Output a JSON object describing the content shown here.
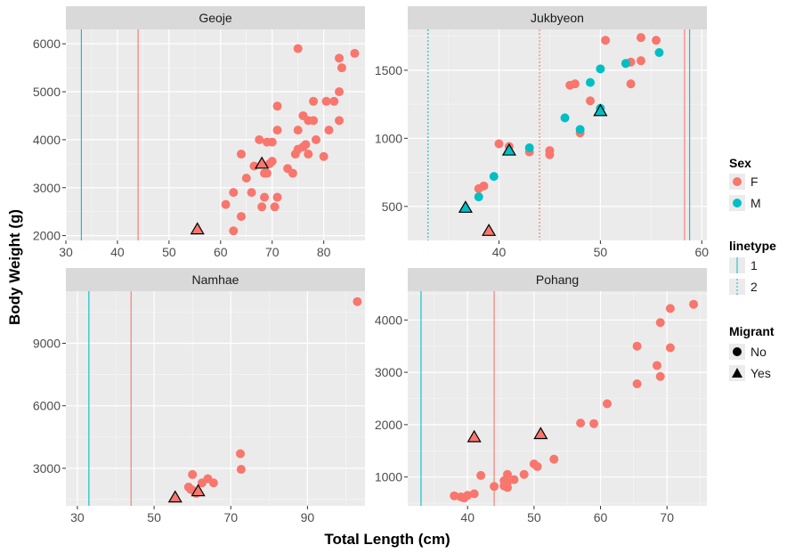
{
  "chart_data": {
    "type": "scatter",
    "xlabel": "Total Length (cm)",
    "ylabel": "Body Weight (g)",
    "colors": {
      "F": "#F8766D",
      "M": "#00BFC4"
    },
    "legend": {
      "placement": "right",
      "sex": {
        "title": "Sex",
        "items": [
          "F",
          "M"
        ]
      },
      "linetype": {
        "title": "linetype",
        "items": [
          "1",
          "2"
        ]
      },
      "migrant": {
        "title": "Migrant",
        "items": [
          "No",
          "Yes"
        ]
      }
    },
    "panels": [
      {
        "name": "Geoje",
        "xlim": [
          30,
          88
        ],
        "ylim": [
          1900,
          6300
        ],
        "xticks": [
          30,
          40,
          50,
          60,
          70,
          80
        ],
        "yticks": [
          2000,
          3000,
          4000,
          5000,
          6000
        ],
        "vlines": [
          {
            "x": 33,
            "sex": "M",
            "linetype": "1"
          },
          {
            "x": 44,
            "sex": "F",
            "linetype": "1"
          }
        ],
        "points": [
          [
            75,
            5900,
            "F",
            "No"
          ],
          [
            83,
            5700,
            "F",
            "No"
          ],
          [
            86,
            5800,
            "F",
            "No"
          ],
          [
            83.5,
            5500,
            "F",
            "No"
          ],
          [
            83,
            5000,
            "F",
            "No"
          ],
          [
            82,
            4800,
            "F",
            "No"
          ],
          [
            80.5,
            4800,
            "F",
            "No"
          ],
          [
            78,
            4800,
            "F",
            "No"
          ],
          [
            76,
            4500,
            "F",
            "No"
          ],
          [
            77,
            4400,
            "F",
            "No"
          ],
          [
            71,
            4700,
            "F",
            "No"
          ],
          [
            78,
            4400,
            "F",
            "No"
          ],
          [
            83,
            4400,
            "F",
            "No"
          ],
          [
            75,
            4200,
            "F",
            "No"
          ],
          [
            81,
            4200,
            "F",
            "No"
          ],
          [
            78.5,
            4000,
            "F",
            "No"
          ],
          [
            71,
            4200,
            "F",
            "No"
          ],
          [
            67.5,
            4000,
            "F",
            "No"
          ],
          [
            69,
            3950,
            "F",
            "No"
          ],
          [
            70,
            3950,
            "F",
            "No"
          ],
          [
            76.5,
            3900,
            "F",
            "No"
          ],
          [
            75,
            3800,
            "F",
            "No"
          ],
          [
            76,
            3850,
            "F",
            "No"
          ],
          [
            74.5,
            3700,
            "F",
            "No"
          ],
          [
            77,
            3700,
            "F",
            "No"
          ],
          [
            64,
            3700,
            "F",
            "No"
          ],
          [
            66.5,
            3450,
            "F",
            "No"
          ],
          [
            70,
            3550,
            "F",
            "No"
          ],
          [
            69.5,
            3500,
            "F",
            "No"
          ],
          [
            73,
            3400,
            "F",
            "No"
          ],
          [
            74,
            3300,
            "F",
            "No"
          ],
          [
            80,
            3650,
            "F",
            "No"
          ],
          [
            68.5,
            3300,
            "F",
            "No"
          ],
          [
            69,
            3300,
            "F",
            "No"
          ],
          [
            65,
            3200,
            "F",
            "No"
          ],
          [
            66,
            2900,
            "F",
            "No"
          ],
          [
            62.5,
            2900,
            "F",
            "No"
          ],
          [
            68.5,
            2800,
            "F",
            "No"
          ],
          [
            71,
            2800,
            "F",
            "No"
          ],
          [
            61,
            2650,
            "F",
            "No"
          ],
          [
            68,
            2600,
            "F",
            "No"
          ],
          [
            70.5,
            2600,
            "F",
            "No"
          ],
          [
            64,
            2400,
            "F",
            "No"
          ],
          [
            62.5,
            2100,
            "F",
            "No"
          ],
          [
            68,
            3500,
            "F",
            "Yes"
          ],
          [
            55.5,
            2130,
            "F",
            "Yes"
          ]
        ]
      },
      {
        "name": "Jukbyeon",
        "xlim": [
          31,
          60.5
        ],
        "ylim": [
          250,
          1800
        ],
        "xticks": [
          40,
          50,
          60
        ],
        "yticks": [
          500,
          1000,
          1500
        ],
        "vlines": [
          {
            "x": 58.3,
            "sex": "F",
            "linetype": "1"
          },
          {
            "x": 44,
            "sex": "F",
            "linetype": "2"
          },
          {
            "x": 58.8,
            "sex": "M",
            "linetype": "1"
          },
          {
            "x": 33,
            "sex": "M",
            "linetype": "2"
          }
        ],
        "points": [
          [
            50.5,
            1720,
            "F",
            "No"
          ],
          [
            54,
            1740,
            "F",
            "No"
          ],
          [
            55.5,
            1720,
            "F",
            "No"
          ],
          [
            52.5,
            1550,
            "F",
            "No"
          ],
          [
            53,
            1560,
            "F",
            "No"
          ],
          [
            54,
            1570,
            "F",
            "No"
          ],
          [
            47,
            1390,
            "F",
            "No"
          ],
          [
            47.5,
            1400,
            "F",
            "No"
          ],
          [
            53,
            1400,
            "F",
            "No"
          ],
          [
            49,
            1275,
            "F",
            "No"
          ],
          [
            48,
            1040,
            "F",
            "No"
          ],
          [
            40,
            960,
            "F",
            "No"
          ],
          [
            41,
            940,
            "F",
            "No"
          ],
          [
            43,
            900,
            "F",
            "No"
          ],
          [
            45,
            910,
            "F",
            "No"
          ],
          [
            45,
            880,
            "F",
            "No"
          ],
          [
            38.5,
            650,
            "F",
            "No"
          ],
          [
            38,
            630,
            "F",
            "No"
          ],
          [
            55.8,
            1630,
            "M",
            "No"
          ],
          [
            52.5,
            1550,
            "M",
            "No"
          ],
          [
            50,
            1510,
            "M",
            "No"
          ],
          [
            49,
            1410,
            "M",
            "No"
          ],
          [
            50,
            1220,
            "M",
            "No"
          ],
          [
            46.5,
            1150,
            "M",
            "No"
          ],
          [
            48,
            1065,
            "M",
            "No"
          ],
          [
            43,
            930,
            "M",
            "No"
          ],
          [
            39.5,
            720,
            "M",
            "No"
          ],
          [
            38,
            570,
            "M",
            "No"
          ],
          [
            50,
            1200,
            "M",
            "Yes"
          ],
          [
            41,
            910,
            "M",
            "Yes"
          ],
          [
            36.7,
            490,
            "M",
            "Yes"
          ],
          [
            39,
            320,
            "F",
            "Yes"
          ]
        ]
      },
      {
        "name": "Namhae",
        "xlim": [
          27,
          105
        ],
        "ylim": [
          1200,
          11500
        ],
        "xticks": [
          30,
          50,
          70,
          90
        ],
        "yticks": [
          3000,
          6000,
          9000
        ],
        "vlines": [
          {
            "x": 33,
            "sex": "M",
            "linetype": "1"
          },
          {
            "x": 44,
            "sex": "F",
            "linetype": "1"
          }
        ],
        "points": [
          [
            103,
            11000,
            "F",
            "No"
          ],
          [
            72.5,
            3700,
            "F",
            "No"
          ],
          [
            72.7,
            2950,
            "F",
            "No"
          ],
          [
            60,
            2700,
            "F",
            "No"
          ],
          [
            64,
            2500,
            "F",
            "No"
          ],
          [
            65.5,
            2300,
            "F",
            "No"
          ],
          [
            62.5,
            2300,
            "F",
            "No"
          ],
          [
            59,
            2100,
            "F",
            "No"
          ],
          [
            59.5,
            2000,
            "F",
            "No"
          ],
          [
            60,
            1950,
            "F",
            "No"
          ],
          [
            61,
            1800,
            "F",
            "No"
          ],
          [
            61.5,
            1900,
            "F",
            "Yes"
          ],
          [
            55.5,
            1600,
            "F",
            "Yes"
          ]
        ]
      },
      {
        "name": "Pohang",
        "xlim": [
          31,
          76
        ],
        "ylim": [
          450,
          4550
        ],
        "xticks": [
          40,
          50,
          60,
          70
        ],
        "yticks": [
          1000,
          2000,
          3000,
          4000
        ],
        "vlines": [
          {
            "x": 33,
            "sex": "M",
            "linetype": "1"
          },
          {
            "x": 44,
            "sex": "F",
            "linetype": "1"
          }
        ],
        "points": [
          [
            74,
            4300,
            "F",
            "No"
          ],
          [
            70.5,
            4220,
            "F",
            "No"
          ],
          [
            69,
            3950,
            "F",
            "No"
          ],
          [
            65.5,
            3500,
            "F",
            "No"
          ],
          [
            70.5,
            3470,
            "F",
            "No"
          ],
          [
            68.5,
            3130,
            "F",
            "No"
          ],
          [
            69,
            2920,
            "F",
            "No"
          ],
          [
            65.5,
            2780,
            "F",
            "No"
          ],
          [
            61,
            2400,
            "F",
            "No"
          ],
          [
            57,
            2030,
            "F",
            "No"
          ],
          [
            59,
            2020,
            "F",
            "No"
          ],
          [
            53,
            1340,
            "F",
            "No"
          ],
          [
            50,
            1250,
            "F",
            "No"
          ],
          [
            50.5,
            1200,
            "F",
            "No"
          ],
          [
            48.5,
            1050,
            "F",
            "No"
          ],
          [
            46,
            1050,
            "F",
            "No"
          ],
          [
            42,
            1030,
            "F",
            "No"
          ],
          [
            47,
            950,
            "F",
            "No"
          ],
          [
            45.5,
            930,
            "F",
            "No"
          ],
          [
            46,
            900,
            "F",
            "No"
          ],
          [
            45.5,
            830,
            "F",
            "No"
          ],
          [
            44,
            820,
            "F",
            "No"
          ],
          [
            46,
            800,
            "F",
            "No"
          ],
          [
            41,
            680,
            "F",
            "No"
          ],
          [
            38,
            640,
            "F",
            "No"
          ],
          [
            39,
            620,
            "F",
            "No"
          ],
          [
            40,
            650,
            "F",
            "No"
          ],
          [
            39.5,
            600,
            "F",
            "No"
          ],
          [
            41,
            1760,
            "F",
            "Yes"
          ],
          [
            51,
            1820,
            "F",
            "Yes"
          ]
        ]
      }
    ]
  }
}
